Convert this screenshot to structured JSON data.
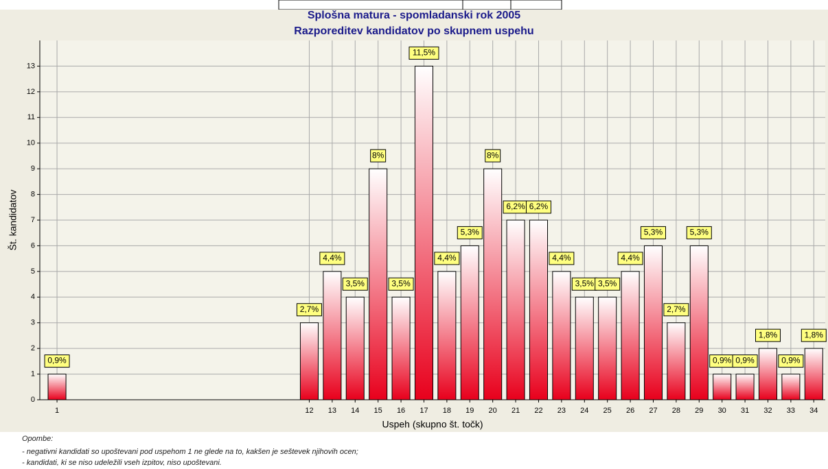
{
  "chart_data": {
    "type": "bar",
    "title": "Splošna matura - spomladanski rok 2005",
    "subtitle": "Razporeditev kandidatov po skupnem uspehu",
    "x_label": "Uspeh (skupno št. točk)",
    "y_label": "Št. kandidatov",
    "x": [
      1,
      12,
      13,
      14,
      15,
      16,
      17,
      18,
      19,
      20,
      21,
      22,
      23,
      24,
      25,
      26,
      27,
      28,
      29,
      30,
      31,
      32,
      33,
      34
    ],
    "values": [
      1,
      3,
      5,
      4,
      9,
      4,
      13,
      5,
      6,
      9,
      7,
      7,
      5,
      4,
      4,
      5,
      6,
      3,
      6,
      1,
      1,
      2,
      1,
      2
    ],
    "bar_labels": [
      "0,9%",
      "2,7%",
      "4,4%",
      "3,5%",
      "8%",
      "3,5%",
      "11,5%",
      "4,4%",
      "5,3%",
      "8%",
      "6,2%",
      "6,2%",
      "4,4%",
      "3,5%",
      "3,5%",
      "4,4%",
      "5,3%",
      "2,7%",
      "5,3%",
      "0,9%",
      "0,9%",
      "1,8%",
      "0,9%",
      "1,8%"
    ],
    "color": "#e8001c",
    "xlim": [
      0.25,
      34.5
    ],
    "xticks": [
      1,
      12,
      13,
      14,
      15,
      16,
      17,
      18,
      19,
      20,
      21,
      22,
      23,
      24,
      25,
      26,
      27,
      28,
      29,
      30,
      31,
      32,
      33,
      34
    ],
    "ylim": [
      0,
      14
    ],
    "yticks": [
      0,
      1,
      2,
      3,
      4,
      5,
      6,
      7,
      8,
      9,
      10,
      11,
      12,
      13
    ],
    "grid": true
  },
  "notes": {
    "heading": "Opombe:",
    "lines": [
      "- negativni kandidati so upoštevani pod uspehom 1 ne glede na to, kakšen je seštevek njihovih ocen;",
      "- kandidati, ki se niso udeležili vseh izpitov, niso upoštevani."
    ]
  }
}
